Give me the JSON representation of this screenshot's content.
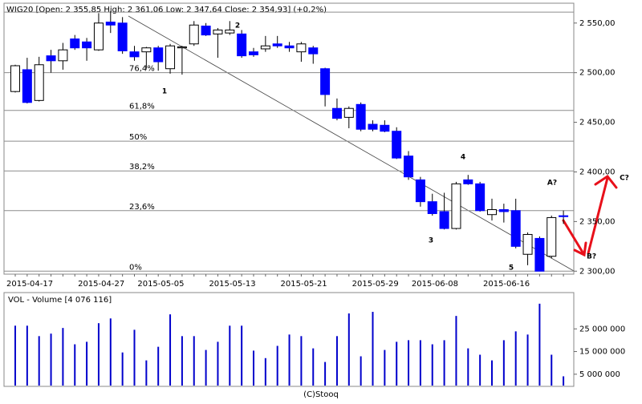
{
  "chart_data": [
    {
      "type": "candlestick",
      "title": "WIG20 [Open: 2 355,85  High: 2 361,06  Low: 2 347,64  Close: 2 354,93] (+0,2%)",
      "categories": [
        "2015-04-17",
        null,
        null,
        null,
        null,
        null,
        "2015-04-27",
        null,
        null,
        null,
        null,
        "2015-05-05",
        null,
        null,
        null,
        null,
        null,
        "2015-05-13",
        null,
        null,
        null,
        null,
        null,
        "2015-05-21",
        null,
        null,
        null,
        null,
        null,
        "2015-05-29",
        null,
        null,
        null,
        null,
        "2015-06-08",
        null,
        null,
        null,
        null,
        null,
        "2015-06-16",
        null,
        null,
        null,
        null,
        null,
        null
      ],
      "open": [
        2481,
        2503,
        2472,
        2517,
        2512,
        2534,
        2531,
        2523,
        2551,
        2550,
        2521,
        2521,
        2525,
        2504,
        2525,
        2529,
        2547,
        2539,
        2540,
        2539,
        2521,
        2524,
        2529,
        2527,
        2521,
        2525,
        2504,
        2464,
        2455,
        2468,
        2448,
        2447,
        2441,
        2416,
        2392,
        2370,
        2360,
        2343,
        2392,
        2388,
        2357,
        2362,
        2361,
        2317,
        2333,
        2315,
        2355.85
      ],
      "high": [
        2508,
        2515,
        2516,
        2523,
        2530,
        2538,
        2535,
        2560,
        2562,
        2556,
        2527,
        2526,
        2527,
        2529,
        2527,
        2552,
        2550,
        2545,
        2552,
        2543,
        2525,
        2537,
        2537,
        2531,
        2531,
        2527,
        2505,
        2474,
        2466,
        2470,
        2452,
        2452,
        2445,
        2421,
        2395,
        2378,
        2379,
        2390,
        2397,
        2390,
        2373,
        2368,
        2373,
        2339,
        2335,
        2356,
        2361.06
      ],
      "low": [
        2480,
        2469,
        2471,
        2500,
        2503,
        2523,
        2512,
        2522,
        2540,
        2519,
        2512,
        2504,
        2502,
        2499,
        2498,
        2527,
        2537,
        2515,
        2538,
        2515,
        2516,
        2521,
        2525,
        2521,
        2511,
        2509,
        2466,
        2452,
        2444,
        2441,
        2441,
        2440,
        2413,
        2392,
        2365,
        2356,
        2342,
        2342,
        2387,
        2360,
        2351,
        2349,
        2323,
        2306,
        2300,
        2313,
        2347.64
      ],
      "close": [
        2507,
        2470,
        2508,
        2512,
        2523,
        2525,
        2525,
        2550,
        2548,
        2522,
        2516,
        2525,
        2511,
        2527,
        2526,
        2548,
        2538,
        2543,
        2543,
        2517,
        2518,
        2527,
        2527,
        2525,
        2529,
        2519,
        2478,
        2454,
        2464,
        2443,
        2443,
        2441,
        2414,
        2395,
        2370,
        2358,
        2343,
        2388,
        2388,
        2361,
        2362,
        2360,
        2325,
        2337,
        2300,
        2354,
        2354.93
      ],
      "up_color": "#ffffff",
      "down_color": "#0000ff",
      "ylim": [
        2297,
        2570
      ],
      "yticks": [
        {
          "value": 2300,
          "label": "2 300,00"
        },
        {
          "value": 2350,
          "label": "2 350,00"
        },
        {
          "value": 2400,
          "label": "2 400,00"
        },
        {
          "value": 2450,
          "label": "2 450,00"
        },
        {
          "value": 2500,
          "label": "2 500,00"
        },
        {
          "value": 2550,
          "label": "2 550,00"
        }
      ],
      "fib_levels": [
        {
          "value": 2561,
          "label": null
        },
        {
          "value": 2500,
          "label": "76,4%"
        },
        {
          "value": 2462,
          "label": "61,8%"
        },
        {
          "value": 2431,
          "label": "50%"
        },
        {
          "value": 2401,
          "label": "38,2%"
        },
        {
          "value": 2361,
          "label": "23,6%"
        },
        {
          "value": 2300,
          "label": "0%"
        }
      ],
      "wave_labels": [
        "1",
        "2",
        "3",
        "4",
        "5",
        "A?",
        "B?",
        "C?"
      ],
      "source": "(C)Stooq"
    },
    {
      "type": "bar",
      "title": "VOL - Volume [4 076 116]",
      "values": [
        26400000,
        26400000,
        21800000,
        22900000,
        25400000,
        18200000,
        19300000,
        27500000,
        29600000,
        14600000,
        24600000,
        11100000,
        17100000,
        31400000,
        21800000,
        21800000,
        15700000,
        19300000,
        26400000,
        26400000,
        15400000,
        12100000,
        17500000,
        22500000,
        21800000,
        16400000,
        10400000,
        21800000,
        31800000,
        12900000,
        32500000,
        15700000,
        19300000,
        20000000,
        20000000,
        18200000,
        20000000,
        30700000,
        16400000,
        13600000,
        11100000,
        20000000,
        23900000,
        22500000,
        36100000,
        13600000,
        4076116
      ],
      "color": "#0000cc",
      "ylim": [
        0,
        41000000
      ],
      "yticks": [
        {
          "value": 5000000,
          "label": "5 000 000"
        },
        {
          "value": 15000000,
          "label": "15 000 000"
        },
        {
          "value": 25000000,
          "label": "25 000 000"
        }
      ]
    }
  ]
}
